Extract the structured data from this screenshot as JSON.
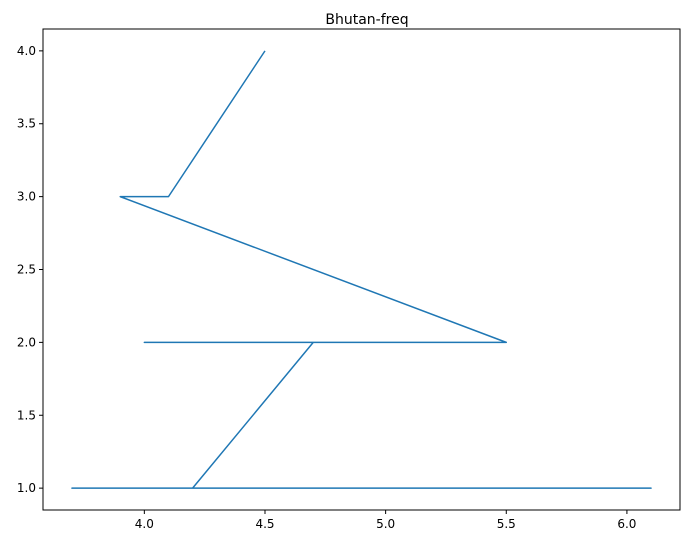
{
  "chart_data": {
    "type": "line",
    "title": "Bhutan-freq",
    "xlabel": "",
    "ylabel": "",
    "xlim": [
      3.58,
      6.22
    ],
    "ylim": [
      0.85,
      4.15
    ],
    "x_ticks": [
      4.0,
      4.5,
      5.0,
      5.5,
      6.0
    ],
    "x_tick_labels": [
      "4.0",
      "4.5",
      "5.0",
      "5.5",
      "6.0"
    ],
    "y_ticks": [
      1.0,
      1.5,
      2.0,
      2.5,
      3.0,
      3.5,
      4.0
    ],
    "y_tick_labels": [
      "1.0",
      "1.5",
      "2.0",
      "2.5",
      "3.0",
      "3.5",
      "4.0"
    ],
    "grid": false,
    "series": [
      {
        "color": "#1f77b4",
        "x": [
          4.5,
          4.1,
          3.9,
          5.5,
          4.0,
          4.7,
          4.2,
          6.1,
          3.7,
          6.1,
          3.7,
          6.1
        ],
        "y": [
          4.0,
          3.0,
          3.0,
          2.0,
          2.0,
          2.0,
          1.0,
          1.0,
          1.0,
          1.0,
          1.0,
          1.0
        ]
      }
    ]
  }
}
